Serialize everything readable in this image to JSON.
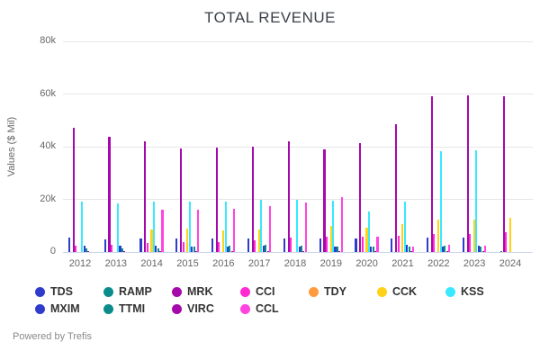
{
  "title": "TOTAL REVENUE",
  "powered_by": "Powered by Trefis",
  "chart_data": {
    "type": "bar",
    "title": "TOTAL REVENUE",
    "xlabel": "",
    "ylabel": "Values ($ Mil)",
    "ylim": [
      0,
      80000
    ],
    "ytick_values": [
      0,
      20000,
      40000,
      60000,
      80000
    ],
    "ytick_labels": [
      "0",
      "20k",
      "40k",
      "60k",
      "80k"
    ],
    "grid": true,
    "legend_position": "bottom",
    "legend_rows": [
      [
        "TDS",
        "RAMP",
        "MRK",
        "CCI",
        "TDY",
        "CCK",
        "KSS"
      ],
      [
        "MXIM",
        "TTMI",
        "VIRC",
        "CCL"
      ]
    ],
    "categories": [
      "2012",
      "2013",
      "2014",
      "2015",
      "2016",
      "2017",
      "2018",
      "2019",
      "2020",
      "2021",
      "2022",
      "2023",
      "2024"
    ],
    "series": [
      {
        "name": "TDS",
        "color": "#2f3bcb",
        "values": [
          5300,
          4700,
          5000,
          5200,
          5200,
          5000,
          5100,
          5200,
          5000,
          5200,
          5400,
          5300,
          0
        ]
      },
      {
        "name": "RAMP",
        "color": "#0c8b8b",
        "values": [
          0,
          0,
          0,
          0,
          0,
          0,
          0,
          0,
          0,
          0,
          0,
          0,
          500
        ]
      },
      {
        "name": "MRK",
        "color": "#a509ab",
        "values": [
          47200,
          43700,
          42000,
          39400,
          39800,
          40100,
          42200,
          39000,
          41500,
          48500,
          59300,
          59400,
          59200
        ]
      },
      {
        "name": "CCI",
        "color": "#ff2bd1",
        "values": [
          2400,
          2900,
          3500,
          3700,
          3900,
          4300,
          5400,
          5800,
          5800,
          6300,
          7000,
          7000,
          7500
        ]
      },
      {
        "name": "TDY",
        "color": "#ff9b3d",
        "values": [
          0,
          0,
          0,
          0,
          0,
          0,
          0,
          0,
          0,
          0,
          0,
          0,
          0
        ]
      },
      {
        "name": "CCK",
        "color": "#ffd117",
        "values": [
          0,
          0,
          8500,
          8800,
          8300,
          8700,
          0,
          10000,
          9400,
          10700,
          12300,
          12200,
          13100
        ]
      },
      {
        "name": "KSS",
        "color": "#38e9ff",
        "values": [
          19200,
          18500,
          19000,
          19300,
          19200,
          19700,
          20000,
          19600,
          15500,
          19100,
          38300,
          38500,
          0
        ]
      },
      {
        "name": "MXIM",
        "color": "#2f3bcb",
        "values": [
          2400,
          2400,
          2500,
          2200,
          2200,
          2300,
          2200,
          2200,
          2200,
          2600,
          1900,
          2300,
          0
        ]
      },
      {
        "name": "TTMI",
        "color": "#0c8b8b",
        "values": [
          1300,
          1400,
          1300,
          2100,
          2500,
          2700,
          2300,
          2200,
          2100,
          2200,
          2500,
          1900,
          0
        ]
      },
      {
        "name": "VIRC",
        "color": "#a509ab",
        "values": [
          200,
          200,
          200,
          200,
          200,
          200,
          200,
          200,
          200,
          200,
          200,
          200,
          0
        ]
      },
      {
        "name": "CCL",
        "color": "#ff44e0",
        "values": [
          0,
          0,
          16000,
          16200,
          16400,
          17300,
          18800,
          20800,
          5900,
          2000,
          2600,
          2500,
          0
        ]
      }
    ]
  }
}
